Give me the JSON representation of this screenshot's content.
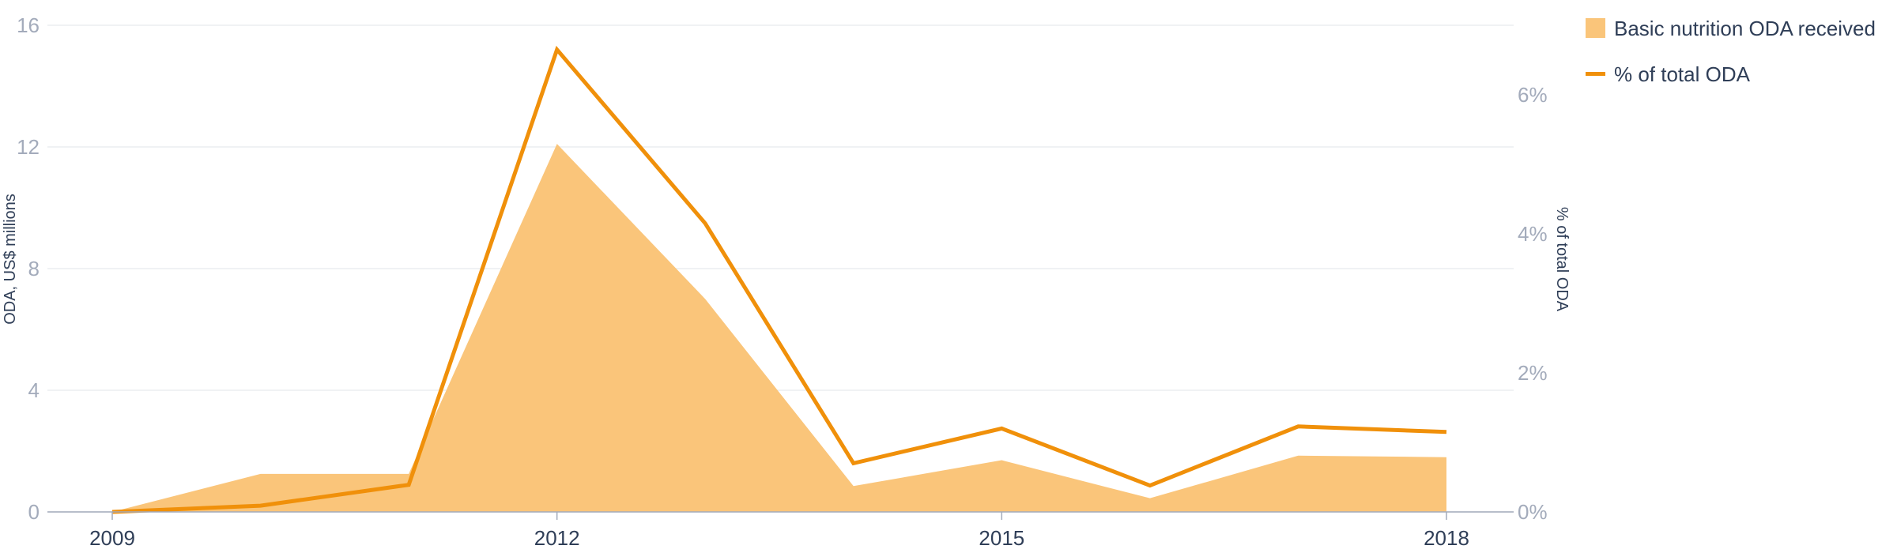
{
  "chart_data": {
    "type": "area",
    "x": [
      2009,
      2010,
      2011,
      2012,
      2013,
      2014,
      2015,
      2016,
      2017,
      2018
    ],
    "x_tick_labels": [
      "2009",
      "2012",
      "2015",
      "2018"
    ],
    "series": [
      {
        "name": "Basic nutrition ODA received",
        "type": "area",
        "axis": "left",
        "color": "#fac57a",
        "values": [
          0.0,
          1.25,
          1.25,
          12.1,
          7.0,
          0.85,
          1.7,
          0.45,
          1.85,
          1.8
        ]
      },
      {
        "name": "% of total ODA",
        "type": "line",
        "axis": "right",
        "color": "#f0900a",
        "values": [
          0.0,
          0.09,
          0.39,
          6.65,
          4.15,
          0.7,
          1.2,
          0.38,
          1.23,
          1.15
        ]
      }
    ],
    "y_left": {
      "label": "ODA, US$ millions",
      "range": [
        0,
        16
      ],
      "ticks": [
        0,
        4,
        8,
        12,
        16
      ],
      "tick_labels": [
        "0",
        "4",
        "8",
        "12",
        "16"
      ]
    },
    "y_right": {
      "label": "% of total ODA",
      "range": [
        0,
        7
      ],
      "ticks": [
        0,
        2,
        4,
        6
      ],
      "tick_labels": [
        "0%",
        "2%",
        "4%",
        "6%"
      ]
    },
    "grid": true,
    "legend_position": "top-right",
    "title": "",
    "xlabel": ""
  }
}
